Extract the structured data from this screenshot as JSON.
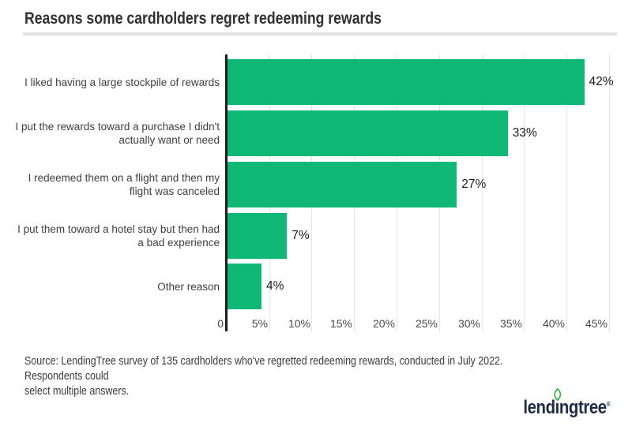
{
  "title": "Reasons some cardholders regret redeeming rewards",
  "chart_data": {
    "type": "bar",
    "orientation": "horizontal",
    "title": "Reasons some cardholders regret redeeming rewards",
    "categories": [
      "I liked having a large stockpile of rewards",
      "I put the rewards toward a purchase I didn't\nactually want or need",
      "I redeemed them on a flight and then my\nflight was canceled",
      "I put them toward a hotel stay but then had\na bad experience",
      "Other reason"
    ],
    "values": [
      42,
      33,
      27,
      7,
      4
    ],
    "value_labels": [
      "42%",
      "33%",
      "27%",
      "7%",
      "4%"
    ],
    "tick_labels": [
      "0",
      "5%",
      "10%",
      "15%",
      "20%",
      "25%",
      "30%",
      "35%",
      "40%",
      "45%"
    ],
    "xlabel": "",
    "ylabel": "",
    "xlim": [
      0,
      46
    ],
    "grid": "vertical-only",
    "legend": "none",
    "bar_color": "#10b876",
    "axis_color": "#1c1c1c",
    "gridline_color": "#e4e4e4"
  },
  "source_note": "Source: LendingTree survey of 135 cardholders who've regretted redeeming rewards, conducted in July 2022. Respondents could\nselect multiple answers.",
  "logo": {
    "part1": "lend",
    "i_char": "ı",
    "part2": "ngtree",
    "registered": "®",
    "brand_navy": "#202c46",
    "leaf_green": "#3cb54a"
  }
}
